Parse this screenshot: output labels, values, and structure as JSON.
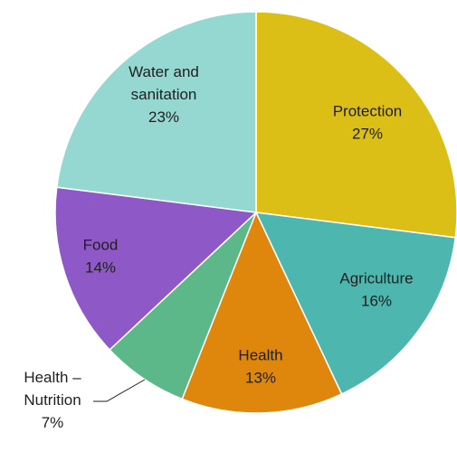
{
  "chart_data": {
    "type": "pie",
    "title": "",
    "start_angle_deg": 0,
    "direction": "clockwise",
    "slices": [
      {
        "name": "Protection",
        "value": 27,
        "label_lines": [
          "Protection",
          "27%"
        ],
        "color": "#DBBF16"
      },
      {
        "name": "Agriculture",
        "value": 16,
        "label_lines": [
          "Agriculture",
          "16%"
        ],
        "color": "#4DB6AE"
      },
      {
        "name": "Health",
        "value": 13,
        "label_lines": [
          "Health",
          "13%"
        ],
        "color": "#DF870D"
      },
      {
        "name": "Health – Nutrition",
        "value": 7,
        "label_lines": [
          "Health –",
          "Nutrition",
          "7%"
        ],
        "color": "#5CB789"
      },
      {
        "name": "Food",
        "value": 14,
        "label_lines": [
          "Food",
          "14%"
        ],
        "color": "#8E58C6"
      },
      {
        "name": "Water and sanitation",
        "value": 23,
        "label_lines": [
          "Water and",
          "sanitation",
          "23%"
        ],
        "color": "#95D8D1"
      }
    ]
  }
}
